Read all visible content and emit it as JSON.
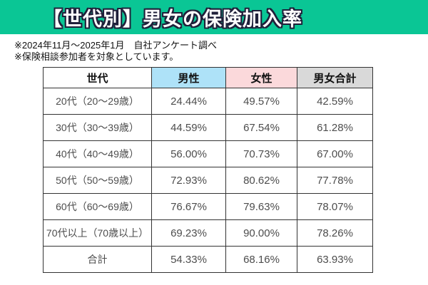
{
  "title": "【世代別】男女の保険加入率",
  "notes": [
    "※2024年11月～2025年1月　自社アンケート調べ",
    "※保険相談参加者を対象としています。"
  ],
  "colors": {
    "banner_green": "#0AC695",
    "title_text": "#FFFFFF",
    "title_outline": "#20203A",
    "male_header_bg": "#AEE2F8",
    "female_header_bg": "#FBD9DB",
    "total_header_bg": "#D9D9D9",
    "table_border": "#333333",
    "cell_text": "#4D4D4D"
  },
  "table": {
    "headers": [
      "世代",
      "男性",
      "女性",
      "男女合計"
    ],
    "rows": [
      {
        "generation": "20代（20～29歳）",
        "male": "24.44%",
        "female": "49.57%",
        "total": "42.59%"
      },
      {
        "generation": "30代（30～39歳）",
        "male": "44.59%",
        "female": "67.54%",
        "total": "61.28%"
      },
      {
        "generation": "40代（40～49歳）",
        "male": "56.00%",
        "female": "70.73%",
        "total": "67.00%"
      },
      {
        "generation": "50代（50～59歳）",
        "male": "72.93%",
        "female": "80.62%",
        "total": "77.78%"
      },
      {
        "generation": "60代（60～69歳）",
        "male": "76.67%",
        "female": "79.63%",
        "total": "78.07%"
      },
      {
        "generation": "70代以上（70歳以上）",
        "male": "69.23%",
        "female": "90.00%",
        "total": "78.26%"
      },
      {
        "generation": "合計",
        "male": "54.33%",
        "female": "68.16%",
        "total": "63.93%"
      }
    ]
  },
  "chart_data": {
    "type": "table",
    "title": "【世代別】男女の保険加入率",
    "subtitle": "2024年11月～2025年1月 自社アンケート調べ（保険相談参加者対象）",
    "columns": [
      "世代",
      "男性",
      "女性",
      "男女合計"
    ],
    "categories": [
      "20代（20～29歳）",
      "30代（30～39歳）",
      "40代（40～49歳）",
      "50代（50～59歳）",
      "60代（60～69歳）",
      "70代以上（70歳以上）",
      "合計"
    ],
    "series": [
      {
        "name": "男性",
        "values": [
          24.44,
          44.59,
          56.0,
          72.93,
          76.67,
          69.23,
          54.33
        ]
      },
      {
        "name": "女性",
        "values": [
          49.57,
          67.54,
          70.73,
          80.62,
          79.63,
          90.0,
          68.16
        ]
      },
      {
        "name": "男女合計",
        "values": [
          42.59,
          61.28,
          67.0,
          77.78,
          78.07,
          78.26,
          63.93
        ]
      }
    ],
    "unit": "%"
  }
}
